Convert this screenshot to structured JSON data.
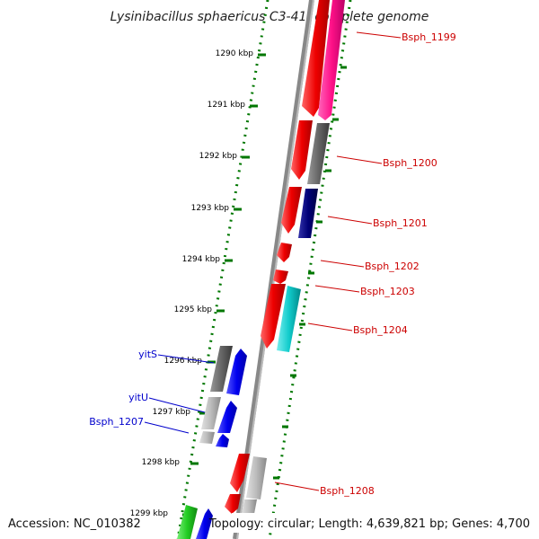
{
  "title": "Lysinibacillus sphaericus C3-41, complete genome",
  "footer": {
    "accession": "Accession: NC_010382",
    "summary": "Topology: circular; Length: 4,639,821 bp; Genes: 4,700"
  },
  "ticks": [
    {
      "label": "1290 kbp",
      "kbp": 1290
    },
    {
      "label": "1291 kbp",
      "kbp": 1291
    },
    {
      "label": "1292 kbp",
      "kbp": 1292
    },
    {
      "label": "1293 kbp",
      "kbp": 1293
    },
    {
      "label": "1294 kbp",
      "kbp": 1294
    },
    {
      "label": "1295 kbp",
      "kbp": 1295
    },
    {
      "label": "1296 kbp",
      "kbp": 1296
    },
    {
      "label": "1297 kbp",
      "kbp": 1297
    },
    {
      "label": "1298 kbp",
      "kbp": 1298
    },
    {
      "label": "1299 kbp",
      "kbp": 1299
    }
  ],
  "gene_labels_right": [
    {
      "label": "Bsph_1199"
    },
    {
      "label": "Bsph_1200"
    },
    {
      "label": "Bsph_1201"
    },
    {
      "label": "Bsph_1202"
    },
    {
      "label": "Bsph_1203"
    },
    {
      "label": "Bsph_1204"
    },
    {
      "label": "Bsph_1208"
    }
  ],
  "gene_labels_left": [
    {
      "label": "yitS"
    },
    {
      "label": "yitU"
    },
    {
      "label": "Bsph_1207"
    }
  ],
  "colors": {
    "red": "#ee1111",
    "pink": "#ff1188",
    "gray": "#666666",
    "light_gray": "#bbbbbb",
    "navy": "#000077",
    "blue": "#0000ee",
    "cyan": "#11cccc",
    "green": "#22cc22",
    "tick_green": "#007700",
    "label_red": "#cc0000",
    "label_blue": "#0000cc"
  }
}
